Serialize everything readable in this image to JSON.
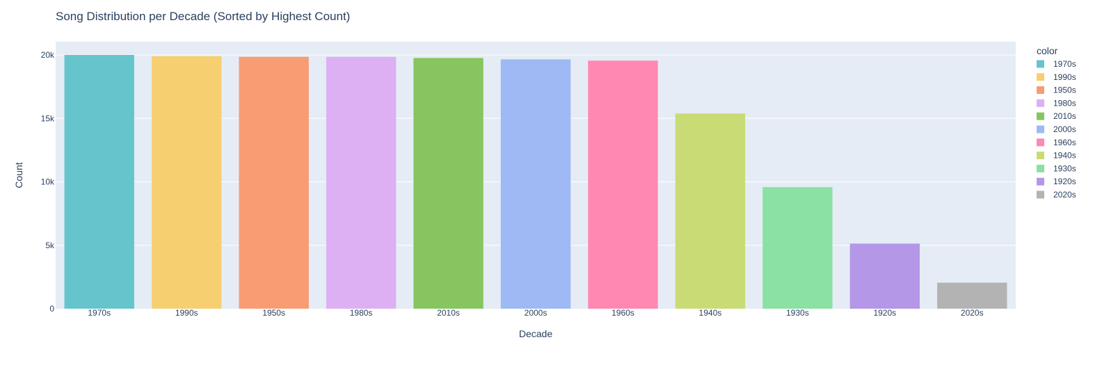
{
  "chart_data": {
    "type": "bar",
    "title": "Song Distribution per Decade (Sorted by Highest Count)",
    "xlabel": "Decade",
    "ylabel": "Count",
    "categories": [
      "1970s",
      "1990s",
      "1950s",
      "1980s",
      "2010s",
      "2000s",
      "1960s",
      "1940s",
      "1930s",
      "1920s",
      "2020s"
    ],
    "values": [
      20000,
      19900,
      19850,
      19850,
      19760,
      19650,
      19550,
      15380,
      9580,
      5130,
      2050
    ],
    "colors": [
      "#66c5cc",
      "#f6cf71",
      "#f89c74",
      "#dcb0f2",
      "#87c55f",
      "#9eb9f3",
      "#fe88b1",
      "#c9db74",
      "#8be0a4",
      "#b497e7",
      "#b3b3b3"
    ],
    "ylim": [
      0,
      20000
    ],
    "yticks": [
      0,
      5000,
      10000,
      15000,
      20000
    ],
    "ytick_labels": [
      "0",
      "5k",
      "10k",
      "15k",
      "20k"
    ],
    "grid": true,
    "legend": {
      "title": "color",
      "placement": "right",
      "items": [
        "1970s",
        "1990s",
        "1950s",
        "1980s",
        "2010s",
        "2000s",
        "1960s",
        "1940s",
        "1930s",
        "1920s",
        "2020s"
      ]
    },
    "plot_background": "#e5ecf6"
  }
}
